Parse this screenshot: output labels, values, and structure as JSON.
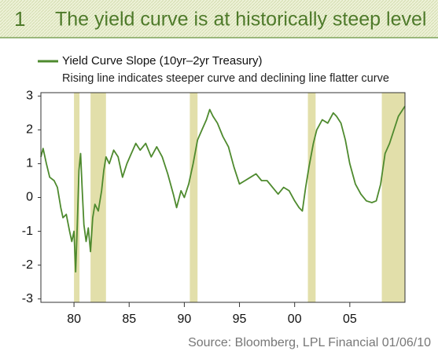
{
  "chart_data": {
    "type": "line",
    "chart_number": "1",
    "title": "The yield curve is at historically steep level",
    "subtitle": "Rising line indicates steeper curve and declining line flatter curve",
    "source": "Source: Bloomberg, LPL Financial   01/06/10",
    "xlim": [
      1977,
      2010
    ],
    "ylim": [
      -3.1,
      3.1
    ],
    "xticks": [
      {
        "value": 1980,
        "label": "80"
      },
      {
        "value": 1985,
        "label": "85"
      },
      {
        "value": 1990,
        "label": "90"
      },
      {
        "value": 1995,
        "label": "95"
      },
      {
        "value": 2000,
        "label": "00"
      },
      {
        "value": 2005,
        "label": "05"
      }
    ],
    "yticks": [
      -3,
      -2,
      -1,
      0,
      1,
      2,
      3
    ],
    "grid": false,
    "legend": "top-left",
    "shaded_periods": [
      [
        1980,
        1980.5
      ],
      [
        1981.5,
        1982.9
      ],
      [
        1990.5,
        1991.2
      ],
      [
        2001.2,
        2001.9
      ],
      [
        2007.9,
        2010
      ]
    ],
    "shade_color": "#e2dfaa",
    "series": [
      {
        "name": "Yield Curve Slope (10yr–2yr Treasury)",
        "color": "#4e8a2e",
        "x": [
          1977.0,
          1977.2,
          1977.5,
          1977.8,
          1978.2,
          1978.5,
          1978.8,
          1979.0,
          1979.3,
          1979.6,
          1979.8,
          1980.0,
          1980.15,
          1980.3,
          1980.45,
          1980.6,
          1980.75,
          1980.9,
          1981.1,
          1981.3,
          1981.5,
          1981.7,
          1981.9,
          1982.2,
          1982.5,
          1982.7,
          1982.9,
          1983.2,
          1983.6,
          1984.0,
          1984.4,
          1984.8,
          1985.2,
          1985.6,
          1986.0,
          1986.5,
          1987.0,
          1987.5,
          1988.0,
          1988.5,
          1989.0,
          1989.3,
          1989.7,
          1990.0,
          1990.4,
          1990.8,
          1991.2,
          1991.6,
          1992.0,
          1992.3,
          1992.6,
          1993.0,
          1993.5,
          1994.0,
          1994.5,
          1995.0,
          1995.5,
          1996.0,
          1996.5,
          1997.0,
          1997.5,
          1998.0,
          1998.5,
          1999.0,
          1999.5,
          2000.0,
          2000.4,
          2000.7,
          2001.0,
          2001.3,
          2001.7,
          2002.0,
          2002.5,
          2003.0,
          2003.5,
          2003.8,
          2004.2,
          2004.6,
          2005.0,
          2005.5,
          2006.0,
          2006.5,
          2007.0,
          2007.4,
          2007.8,
          2008.2,
          2008.6,
          2009.0,
          2009.4,
          2009.8,
          2010.0
        ],
        "values": [
          1.2,
          1.45,
          1.0,
          0.6,
          0.5,
          0.3,
          -0.3,
          -0.6,
          -0.5,
          -1.0,
          -1.3,
          -1.0,
          -2.2,
          -0.8,
          0.8,
          1.3,
          0.2,
          -0.8,
          -1.3,
          -0.9,
          -1.6,
          -0.6,
          -0.2,
          -0.4,
          0.2,
          0.8,
          1.2,
          1.0,
          1.4,
          1.2,
          0.6,
          1.0,
          1.3,
          1.6,
          1.4,
          1.6,
          1.2,
          1.5,
          1.2,
          0.7,
          0.1,
          -0.3,
          0.2,
          0.0,
          0.4,
          1.0,
          1.7,
          2.0,
          2.3,
          2.6,
          2.4,
          2.2,
          1.8,
          1.5,
          0.9,
          0.4,
          0.5,
          0.6,
          0.7,
          0.5,
          0.5,
          0.3,
          0.1,
          0.3,
          0.2,
          -0.1,
          -0.3,
          -0.4,
          0.3,
          0.9,
          1.6,
          2.0,
          2.3,
          2.2,
          2.5,
          2.4,
          2.2,
          1.7,
          1.0,
          0.4,
          0.1,
          -0.1,
          -0.15,
          -0.1,
          0.4,
          1.3,
          1.6,
          2.0,
          2.4,
          2.6,
          2.7
        ]
      }
    ]
  }
}
